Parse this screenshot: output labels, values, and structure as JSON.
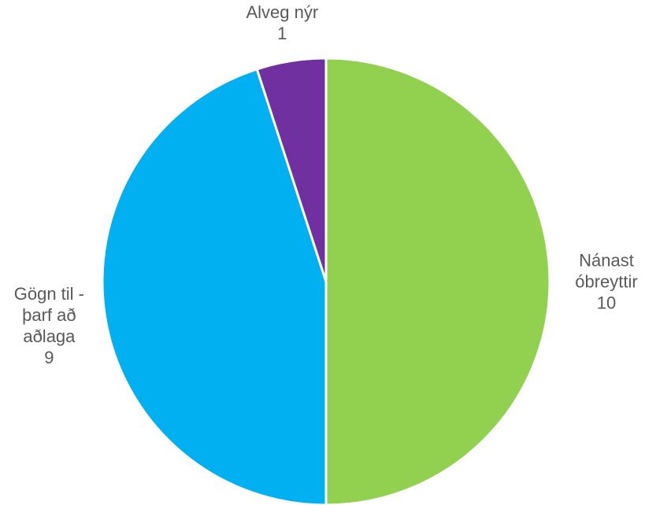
{
  "chart_data": {
    "type": "pie",
    "categories": [
      "Nánast\nóbreyttir",
      "Gögn til -\nþarf að\naðlaga",
      "Alveg nýr"
    ],
    "values": [
      10,
      9,
      1
    ],
    "colors": [
      "#92d050",
      "#00b0f0",
      "#7030a0"
    ]
  }
}
